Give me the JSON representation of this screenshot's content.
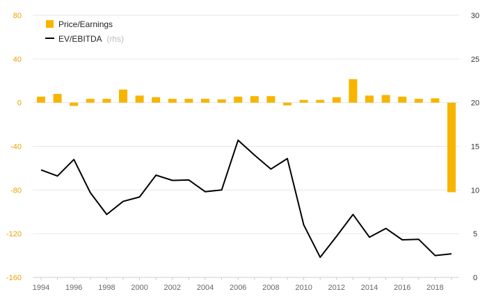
{
  "chart_data": {
    "type": "bar+line",
    "x": [
      1994,
      1995,
      1996,
      1997,
      1998,
      1999,
      2000,
      2001,
      2002,
      2003,
      2004,
      2005,
      2006,
      2007,
      2008,
      2009,
      2010,
      2011,
      2012,
      2013,
      2014,
      2015,
      2016,
      2017,
      2018,
      2019
    ],
    "x_tick_labels": [
      "1994",
      "1996",
      "1998",
      "2000",
      "2002",
      "2004",
      "2006",
      "2008",
      "2010",
      "2012",
      "2014",
      "2016",
      "2018"
    ],
    "series": [
      {
        "name": "Price/Earnings",
        "type": "bar",
        "axis": "left",
        "color": "#f7b500",
        "values": [
          5.5,
          8,
          -3,
          3.5,
          3.5,
          12,
          6.5,
          5,
          3.5,
          3.5,
          3.5,
          3,
          5.5,
          6,
          6,
          -2.5,
          2.5,
          2.5,
          5,
          21.5,
          6.5,
          7,
          5.5,
          3.5,
          4,
          -82
        ]
      },
      {
        "name": "EV/EBITDA",
        "name_note": "(rhs)",
        "type": "line",
        "axis": "right",
        "color": "#000000",
        "values": [
          12.3,
          11.6,
          13.5,
          9.7,
          7.2,
          8.7,
          9.2,
          11.7,
          11.1,
          11.15,
          9.8,
          10,
          15.7,
          14,
          12.4,
          13.6,
          6,
          2.3,
          4.7,
          7.2,
          4.6,
          5.6,
          4.3,
          4.35,
          2.5,
          2.7
        ]
      }
    ],
    "left_axis": {
      "ylim": [
        -160,
        80
      ],
      "ticks": [
        "80",
        "40",
        "0",
        "-40",
        "-80",
        "-120",
        "-160"
      ],
      "tick_values": [
        80,
        40,
        0,
        -40,
        -80,
        -120,
        -160
      ],
      "color": "#e8a200"
    },
    "right_axis": {
      "ylim": [
        0,
        30
      ],
      "ticks": [
        "30",
        "25",
        "20",
        "15",
        "10",
        "5",
        "0"
      ],
      "tick_values": [
        30,
        25,
        20,
        15,
        10,
        5,
        0
      ]
    },
    "grid": true,
    "legend_position": "top-left",
    "title": "",
    "xlabel": "",
    "ylabel": ""
  }
}
